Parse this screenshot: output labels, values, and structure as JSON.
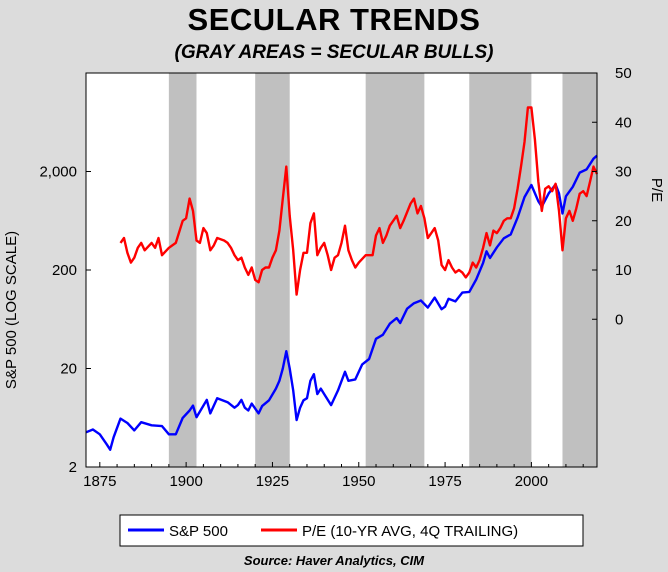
{
  "chart_data": {
    "type": "line",
    "title": "SECULAR TRENDS",
    "subtitle": "(GRAY AREAS = SECULAR BULLS)",
    "source": "Source:  Haver Analytics, CIM",
    "xlim": [
      1871,
      2019
    ],
    "x_ticks": [
      1875,
      1900,
      1925,
      1950,
      1975,
      2000
    ],
    "y_left": {
      "label": "S&P 500 (LOG SCALE)",
      "scale": "log",
      "range": [
        2,
        20000
      ],
      "ticks": [
        {
          "v": 2,
          "label": "2"
        },
        {
          "v": 20,
          "label": "20"
        },
        {
          "v": 200,
          "label": "200"
        },
        {
          "v": 2000,
          "label": "2,000"
        }
      ]
    },
    "y_right": {
      "label": "P/E",
      "scale": "linear",
      "range": [
        -30,
        50
      ],
      "ticks": [
        0,
        10,
        20,
        30,
        40,
        50
      ]
    },
    "grid": false,
    "legend_position": "bottom",
    "shaded_periods": [
      [
        1895,
        1903
      ],
      [
        1920,
        1930
      ],
      [
        1952,
        1969
      ],
      [
        1982,
        2000
      ],
      [
        2009,
        2019
      ]
    ],
    "series": [
      {
        "name": "S&P 500",
        "axis": "left",
        "color": "#0000ff",
        "points": [
          [
            1871,
            4.5
          ],
          [
            1873,
            4.8
          ],
          [
            1875,
            4.3
          ],
          [
            1877,
            3.4
          ],
          [
            1878,
            3.0
          ],
          [
            1879,
            4.0
          ],
          [
            1881,
            6.2
          ],
          [
            1883,
            5.6
          ],
          [
            1885,
            4.7
          ],
          [
            1887,
            5.7
          ],
          [
            1890,
            5.3
          ],
          [
            1893,
            5.2
          ],
          [
            1895,
            4.3
          ],
          [
            1897,
            4.3
          ],
          [
            1899,
            6.3
          ],
          [
            1901,
            7.5
          ],
          [
            1902,
            8.4
          ],
          [
            1903,
            6.4
          ],
          [
            1905,
            8.4
          ],
          [
            1906,
            9.6
          ],
          [
            1907,
            7.0
          ],
          [
            1909,
            10.0
          ],
          [
            1912,
            9.1
          ],
          [
            1914,
            8.0
          ],
          [
            1915,
            8.5
          ],
          [
            1916,
            9.6
          ],
          [
            1917,
            8.0
          ],
          [
            1918,
            7.5
          ],
          [
            1919,
            8.8
          ],
          [
            1921,
            7.0
          ],
          [
            1922,
            8.3
          ],
          [
            1924,
            9.5
          ],
          [
            1926,
            12.5
          ],
          [
            1927,
            15.0
          ],
          [
            1928,
            20.0
          ],
          [
            1929,
            30.0
          ],
          [
            1930,
            20.0
          ],
          [
            1931,
            12.0
          ],
          [
            1932,
            6.0
          ],
          [
            1933,
            8.0
          ],
          [
            1934,
            9.5
          ],
          [
            1935,
            10.0
          ],
          [
            1936,
            15.0
          ],
          [
            1937,
            17.5
          ],
          [
            1938,
            11.0
          ],
          [
            1939,
            12.5
          ],
          [
            1940,
            11.0
          ],
          [
            1942,
            8.5
          ],
          [
            1944,
            12.0
          ],
          [
            1946,
            18.5
          ],
          [
            1947,
            15.0
          ],
          [
            1949,
            15.5
          ],
          [
            1951,
            22.0
          ],
          [
            1953,
            25.0
          ],
          [
            1955,
            40.0
          ],
          [
            1957,
            44.0
          ],
          [
            1959,
            57.0
          ],
          [
            1961,
            65.0
          ],
          [
            1962,
            58.0
          ],
          [
            1964,
            81.0
          ],
          [
            1966,
            92.0
          ],
          [
            1968,
            98.0
          ],
          [
            1970,
            83.0
          ],
          [
            1972,
            105.0
          ],
          [
            1974,
            80.0
          ],
          [
            1975,
            85.0
          ],
          [
            1976,
            102.0
          ],
          [
            1978,
            96.0
          ],
          [
            1980,
            118.0
          ],
          [
            1982,
            120.0
          ],
          [
            1984,
            160.0
          ],
          [
            1986,
            236.0
          ],
          [
            1987,
            310.0
          ],
          [
            1988,
            265.0
          ],
          [
            1990,
            340.0
          ],
          [
            1992,
            420.0
          ],
          [
            1994,
            460.0
          ],
          [
            1996,
            680.0
          ],
          [
            1998,
            1100.0
          ],
          [
            2000,
            1460.0
          ],
          [
            2002,
            1000.0
          ],
          [
            2003,
            880.0
          ],
          [
            2005,
            1200.0
          ],
          [
            2007,
            1480.0
          ],
          [
            2008,
            1200.0
          ],
          [
            2009,
            750.0
          ],
          [
            2010,
            1120.0
          ],
          [
            2012,
            1400.0
          ],
          [
            2014,
            1950.0
          ],
          [
            2016,
            2100.0
          ],
          [
            2018,
            2700.0
          ],
          [
            2019,
            2900.0
          ]
        ]
      },
      {
        "name": "P/E (10-YR AVG, 4Q TRAILING)",
        "axis": "right",
        "color": "#ff0000",
        "points": [
          [
            1881,
            15.5
          ],
          [
            1882,
            16.5
          ],
          [
            1883,
            13.5
          ],
          [
            1884,
            11.5
          ],
          [
            1885,
            12.5
          ],
          [
            1886,
            14.5
          ],
          [
            1887,
            15.5
          ],
          [
            1888,
            14.0
          ],
          [
            1890,
            15.5
          ],
          [
            1891,
            14.5
          ],
          [
            1892,
            16.5
          ],
          [
            1893,
            13.0
          ],
          [
            1895,
            14.5
          ],
          [
            1897,
            15.5
          ],
          [
            1899,
            20.0
          ],
          [
            1900,
            20.5
          ],
          [
            1901,
            24.5
          ],
          [
            1902,
            22.0
          ],
          [
            1903,
            16.0
          ],
          [
            1904,
            15.5
          ],
          [
            1905,
            18.5
          ],
          [
            1906,
            17.5
          ],
          [
            1907,
            14.0
          ],
          [
            1908,
            15.0
          ],
          [
            1909,
            16.5
          ],
          [
            1911,
            16.0
          ],
          [
            1912,
            15.5
          ],
          [
            1913,
            14.5
          ],
          [
            1914,
            13.0
          ],
          [
            1915,
            12.0
          ],
          [
            1916,
            12.5
          ],
          [
            1917,
            10.5
          ],
          [
            1918,
            9.0
          ],
          [
            1919,
            10.5
          ],
          [
            1920,
            8.0
          ],
          [
            1921,
            7.5
          ],
          [
            1922,
            10.0
          ],
          [
            1923,
            10.5
          ],
          [
            1924,
            10.5
          ],
          [
            1925,
            12.5
          ],
          [
            1926,
            14.0
          ],
          [
            1927,
            18.0
          ],
          [
            1928,
            24.5
          ],
          [
            1929,
            31.0
          ],
          [
            1930,
            21.0
          ],
          [
            1931,
            14.0
          ],
          [
            1932,
            5.0
          ],
          [
            1933,
            10.0
          ],
          [
            1934,
            13.5
          ],
          [
            1935,
            13.5
          ],
          [
            1936,
            19.5
          ],
          [
            1937,
            21.5
          ],
          [
            1938,
            13.0
          ],
          [
            1939,
            14.5
          ],
          [
            1940,
            15.5
          ],
          [
            1941,
            13.0
          ],
          [
            1942,
            10.0
          ],
          [
            1943,
            12.5
          ],
          [
            1944,
            13.0
          ],
          [
            1945,
            15.5
          ],
          [
            1946,
            19.0
          ],
          [
            1947,
            14.0
          ],
          [
            1948,
            12.0
          ],
          [
            1949,
            10.5
          ],
          [
            1950,
            11.5
          ],
          [
            1952,
            13.0
          ],
          [
            1954,
            13.0
          ],
          [
            1955,
            17.0
          ],
          [
            1956,
            18.5
          ],
          [
            1957,
            15.5
          ],
          [
            1958,
            17.0
          ],
          [
            1959,
            19.0
          ],
          [
            1961,
            21.0
          ],
          [
            1962,
            18.5
          ],
          [
            1963,
            20.0
          ],
          [
            1965,
            23.5
          ],
          [
            1966,
            24.5
          ],
          [
            1967,
            21.5
          ],
          [
            1968,
            23.0
          ],
          [
            1969,
            20.5
          ],
          [
            1970,
            16.5
          ],
          [
            1971,
            17.5
          ],
          [
            1972,
            18.5
          ],
          [
            1973,
            16.0
          ],
          [
            1974,
            11.0
          ],
          [
            1975,
            10.0
          ],
          [
            1976,
            12.0
          ],
          [
            1977,
            10.5
          ],
          [
            1978,
            9.5
          ],
          [
            1979,
            10.0
          ],
          [
            1980,
            9.5
          ],
          [
            1981,
            8.5
          ],
          [
            1982,
            9.5
          ],
          [
            1983,
            11.5
          ],
          [
            1984,
            10.5
          ],
          [
            1985,
            12.0
          ],
          [
            1986,
            14.5
          ],
          [
            1987,
            17.5
          ],
          [
            1988,
            15.0
          ],
          [
            1989,
            18.0
          ],
          [
            1990,
            17.5
          ],
          [
            1991,
            18.5
          ],
          [
            1992,
            20.0
          ],
          [
            1993,
            20.5
          ],
          [
            1994,
            20.5
          ],
          [
            1995,
            22.5
          ],
          [
            1996,
            26.5
          ],
          [
            1997,
            31.0
          ],
          [
            1998,
            36.0
          ],
          [
            1999,
            43.0
          ],
          [
            2000,
            43.0
          ],
          [
            2001,
            36.5
          ],
          [
            2002,
            28.0
          ],
          [
            2003,
            22.0
          ],
          [
            2004,
            26.5
          ],
          [
            2005,
            27.0
          ],
          [
            2006,
            26.0
          ],
          [
            2007,
            27.5
          ],
          [
            2008,
            22.0
          ],
          [
            2009,
            14.0
          ],
          [
            2010,
            20.5
          ],
          [
            2011,
            22.0
          ],
          [
            2012,
            20.0
          ],
          [
            2013,
            22.5
          ],
          [
            2014,
            25.5
          ],
          [
            2015,
            26.0
          ],
          [
            2016,
            25.0
          ],
          [
            2017,
            28.0
          ],
          [
            2018,
            31.0
          ],
          [
            2019,
            29.5
          ]
        ]
      }
    ]
  }
}
